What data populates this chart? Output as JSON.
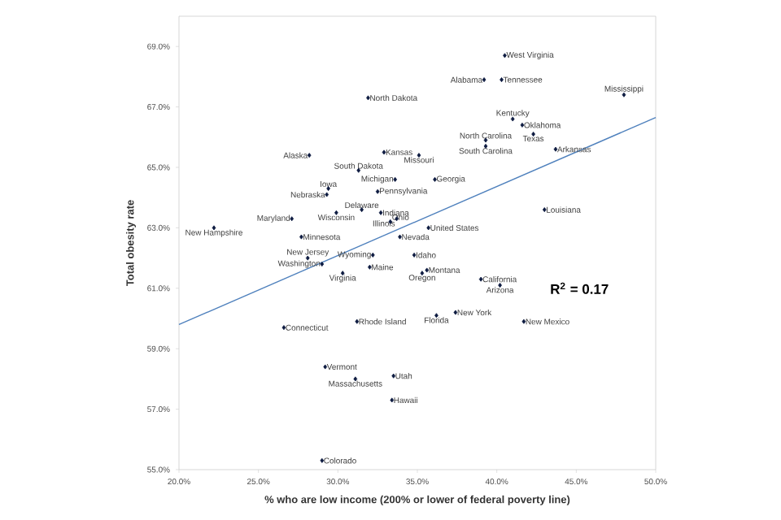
{
  "chart_data": {
    "type": "scatter",
    "xlabel": "% who are low income (200% or lower of federal poverty line)",
    "ylabel": "Total obesity rate",
    "xlim": [
      20,
      50
    ],
    "ylim": [
      55,
      70
    ],
    "xticks": [
      {
        "value": 20,
        "label": "20.0%"
      },
      {
        "value": 25,
        "label": "25.0%"
      },
      {
        "value": 30,
        "label": "30.0%"
      },
      {
        "value": 35,
        "label": "35.0%"
      },
      {
        "value": 40,
        "label": "40.0%"
      },
      {
        "value": 45,
        "label": "45.0%"
      },
      {
        "value": 50,
        "label": "50.0%"
      }
    ],
    "yticks": [
      {
        "value": 55,
        "label": "55.0%"
      },
      {
        "value": 57,
        "label": "57.0%"
      },
      {
        "value": 59,
        "label": "59.0%"
      },
      {
        "value": 61,
        "label": "61.0%"
      },
      {
        "value": 63,
        "label": "63.0%"
      },
      {
        "value": 65,
        "label": "65.0%"
      },
      {
        "value": 67,
        "label": "67.0%"
      },
      {
        "value": 69,
        "label": "69.0%"
      }
    ],
    "grid": false,
    "series": [
      {
        "marker": "diamond",
        "color": "#0d1a40",
        "x": [
          31.9,
          28.2,
          31.3,
          32.9,
          33.6,
          32.5,
          29.4,
          29.3,
          31.5,
          29.9,
          27.1,
          32.7,
          33.3,
          33.7,
          22.2,
          27.7,
          33.9,
          28.1,
          29.0,
          32.2,
          32.0,
          30.3,
          26.6,
          31.2,
          29.2,
          31.1,
          33.5,
          33.4,
          29.0,
          35.7,
          34.8,
          35.6,
          35.3,
          39.0,
          40.2,
          36.2,
          37.4,
          41.7,
          40.5,
          39.2,
          40.3,
          48.0,
          41.0,
          41.6,
          42.3,
          39.3,
          39.3,
          43.7,
          35.1,
          36.1,
          43.0
        ],
        "values": [
          67.3,
          65.4,
          64.9,
          65.5,
          64.6,
          64.2,
          64.3,
          64.1,
          63.6,
          63.5,
          63.3,
          63.5,
          63.2,
          63.3,
          63.0,
          62.7,
          62.7,
          62.0,
          61.8,
          62.1,
          61.7,
          61.5,
          59.7,
          59.9,
          58.4,
          58.0,
          58.1,
          57.3,
          55.3,
          63.0,
          62.1,
          61.6,
          61.5,
          61.3,
          61.1,
          60.1,
          60.2,
          59.9,
          68.7,
          67.9,
          67.9,
          67.4,
          66.6,
          66.4,
          66.1,
          65.9,
          65.7,
          65.6,
          65.4,
          64.6,
          63.6
        ]
      },
      {
        "type": "line",
        "color": "#4f81bd",
        "x": [
          20,
          50
        ],
        "values": [
          59.8,
          66.65
        ]
      }
    ],
    "annotations": [
      {
        "text": "North Dakota",
        "x": 31.9,
        "y": 67.3
      },
      {
        "text": "Alaska",
        "x": 28.2,
        "y": 65.4
      },
      {
        "text": "South Dakota",
        "x": 31.3,
        "y": 64.9
      },
      {
        "text": "Kansas",
        "x": 32.9,
        "y": 65.5
      },
      {
        "text": "Michigan",
        "x": 33.6,
        "y": 64.6
      },
      {
        "text": "Pennsylvania",
        "x": 32.5,
        "y": 64.2
      },
      {
        "text": "Iowa",
        "x": 29.4,
        "y": 64.3
      },
      {
        "text": "Nebraska",
        "x": 29.3,
        "y": 64.1
      },
      {
        "text": "Delaware",
        "x": 31.5,
        "y": 63.6
      },
      {
        "text": "Wisconsin",
        "x": 29.9,
        "y": 63.5
      },
      {
        "text": "Maryland",
        "x": 27.1,
        "y": 63.3
      },
      {
        "text": "Indiana",
        "x": 32.7,
        "y": 63.5
      },
      {
        "text": "Ohio",
        "x": 33.3,
        "y": 63.2
      },
      {
        "text": "Illinois",
        "x": 33.7,
        "y": 63.3
      },
      {
        "text": "New Hampshire",
        "x": 22.2,
        "y": 63.0
      },
      {
        "text": "Minnesota",
        "x": 27.7,
        "y": 62.7
      },
      {
        "text": "Nevada",
        "x": 33.9,
        "y": 62.7
      },
      {
        "text": "New Jersey",
        "x": 28.1,
        "y": 62.0
      },
      {
        "text": "Washington",
        "x": 29.0,
        "y": 61.8
      },
      {
        "text": "Wyoming",
        "x": 32.2,
        "y": 62.1
      },
      {
        "text": "Maine",
        "x": 32.0,
        "y": 61.7
      },
      {
        "text": "Virginia",
        "x": 30.3,
        "y": 61.5
      },
      {
        "text": "Connecticut",
        "x": 26.6,
        "y": 59.7
      },
      {
        "text": "Rhode Island",
        "x": 31.2,
        "y": 59.9
      },
      {
        "text": "Vermont",
        "x": 29.2,
        "y": 58.4
      },
      {
        "text": "Massachusetts",
        "x": 31.1,
        "y": 58.0
      },
      {
        "text": "Utah",
        "x": 33.5,
        "y": 58.1
      },
      {
        "text": "Hawaii",
        "x": 33.4,
        "y": 57.3
      },
      {
        "text": "Colorado",
        "x": 29.0,
        "y": 55.3
      },
      {
        "text": "United States",
        "x": 35.7,
        "y": 63.0
      },
      {
        "text": "Idaho",
        "x": 34.8,
        "y": 62.1
      },
      {
        "text": "Montana",
        "x": 35.6,
        "y": 61.6
      },
      {
        "text": "Oregon",
        "x": 35.3,
        "y": 61.5
      },
      {
        "text": "California",
        "x": 39.0,
        "y": 61.3
      },
      {
        "text": "Arizona",
        "x": 40.2,
        "y": 61.1
      },
      {
        "text": "Florida",
        "x": 36.2,
        "y": 60.1
      },
      {
        "text": "New York",
        "x": 37.4,
        "y": 60.2
      },
      {
        "text": "New Mexico",
        "x": 41.7,
        "y": 59.9
      },
      {
        "text": "West Virginia",
        "x": 40.5,
        "y": 68.7
      },
      {
        "text": "Alabama",
        "x": 39.2,
        "y": 67.9
      },
      {
        "text": "Tennessee",
        "x": 40.3,
        "y": 67.9
      },
      {
        "text": "Mississippi",
        "x": 48.0,
        "y": 67.4
      },
      {
        "text": "Kentucky",
        "x": 41.0,
        "y": 66.6
      },
      {
        "text": "Oklahoma",
        "x": 41.6,
        "y": 66.4
      },
      {
        "text": "Texas",
        "x": 42.3,
        "y": 66.1
      },
      {
        "text": "North Carolina",
        "x": 39.3,
        "y": 65.9
      },
      {
        "text": "South Carolina",
        "x": 39.3,
        "y": 65.7
      },
      {
        "text": "Arkansas",
        "x": 43.7,
        "y": 65.6
      },
      {
        "text": "Missouri",
        "x": 35.1,
        "y": 65.4
      },
      {
        "text": "Georgia",
        "x": 36.1,
        "y": 64.6
      },
      {
        "text": "Louisiana",
        "x": 43.0,
        "y": 63.6
      },
      "R$^{2}$ = 0.17"
    ]
  }
}
